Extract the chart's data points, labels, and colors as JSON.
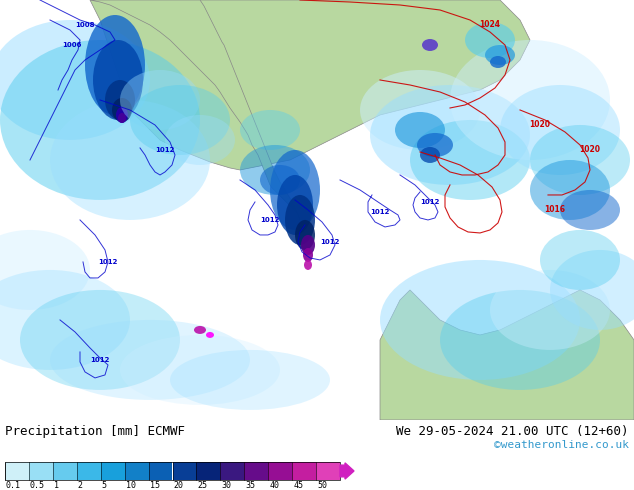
{
  "title_left": "Precipitation [mm] ECMWF",
  "title_right": "We 29-05-2024 21.00 UTC (12+60)",
  "watermark": "©weatheronline.co.uk",
  "colorbar_labels": [
    "0.1",
    "0.5",
    "1",
    "2",
    "5",
    "10",
    "15",
    "20",
    "25",
    "30",
    "35",
    "40",
    "45",
    "50"
  ],
  "colorbar_colors": [
    "#cff0f8",
    "#99dff5",
    "#66cbee",
    "#3bb8e8",
    "#18a0dc",
    "#1280c8",
    "#0b60b4",
    "#083e96",
    "#062478",
    "#3a1880",
    "#660c8a",
    "#960e94",
    "#c41ea0",
    "#e040b8"
  ],
  "arrow_color": "#d020c0",
  "background_color": "#ffffff",
  "label_fontsize": 8.5,
  "watermark_color": "#3399cc",
  "title_fontsize": 9,
  "map_bg": "#e8e8e8",
  "land_color": "#b8d8a0",
  "sea_color": "#f0f0f0",
  "contour_blue": "#0000cc",
  "contour_red": "#cc0000"
}
